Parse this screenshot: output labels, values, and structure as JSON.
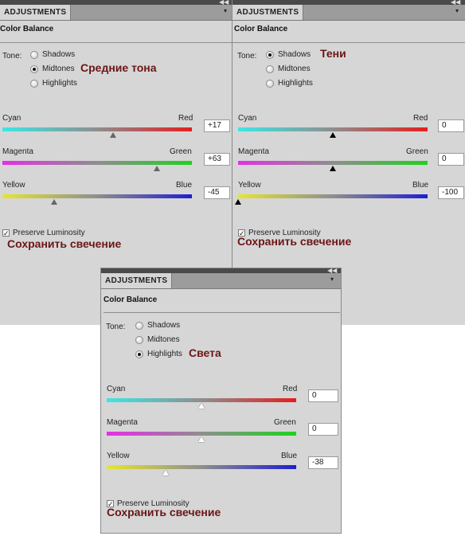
{
  "panels": [
    {
      "tab": "ADJUSTMENTS",
      "title": "Color Balance",
      "tone_label": "Tone:",
      "tones": [
        "Shadows",
        "Midtones",
        "Highlights"
      ],
      "selected_tone": "Midtones",
      "tone_annotation": "Средние тона",
      "sliders": [
        {
          "left": "Cyan",
          "right": "Red",
          "value": "+17",
          "level": 17
        },
        {
          "left": "Magenta",
          "right": "Green",
          "value": "+63",
          "level": 63
        },
        {
          "left": "Yellow",
          "right": "Blue",
          "value": "-45",
          "level": -45
        }
      ],
      "preserve_label": "Preserve Luminosity",
      "preserve_checked": true,
      "preserve_annotation": "Сохранить свечение"
    },
    {
      "tab": "ADJUSTMENTS",
      "title": "Color Balance",
      "tone_label": "Tone:",
      "tones": [
        "Shadows",
        "Midtones",
        "Highlights"
      ],
      "selected_tone": "Shadows",
      "tone_annotation": "Тени",
      "sliders": [
        {
          "left": "Cyan",
          "right": "Red",
          "value": "0",
          "level": 0
        },
        {
          "left": "Magenta",
          "right": "Green",
          "value": "0",
          "level": 0
        },
        {
          "left": "Yellow",
          "right": "Blue",
          "value": "-100",
          "level": -100
        }
      ],
      "preserve_label": "Preserve Luminosity",
      "preserve_checked": true,
      "preserve_annotation": "Сохранить свечение"
    },
    {
      "tab": "ADJUSTMENTS",
      "title": "Color Balance",
      "tone_label": "Tone:",
      "tones": [
        "Shadows",
        "Midtones",
        "Highlights"
      ],
      "selected_tone": "Highlights",
      "tone_annotation": "Света",
      "sliders": [
        {
          "left": "Cyan",
          "right": "Red",
          "value": "0",
          "level": 0
        },
        {
          "left": "Magenta",
          "right": "Green",
          "value": "0",
          "level": 0
        },
        {
          "left": "Yellow",
          "right": "Blue",
          "value": "-38",
          "level": -38
        }
      ],
      "preserve_label": "Preserve Luminosity",
      "preserve_checked": true,
      "preserve_annotation": "Сохранить свечение"
    }
  ],
  "icons": {
    "collapse": "double-chevron-left-icon",
    "menu": "panel-menu-icon",
    "check": "checkmark-icon"
  },
  "colors": {
    "annotation": "#6b1616",
    "panel_bg": "#d6d6d6",
    "tab_bar": "#9c9c9c"
  }
}
